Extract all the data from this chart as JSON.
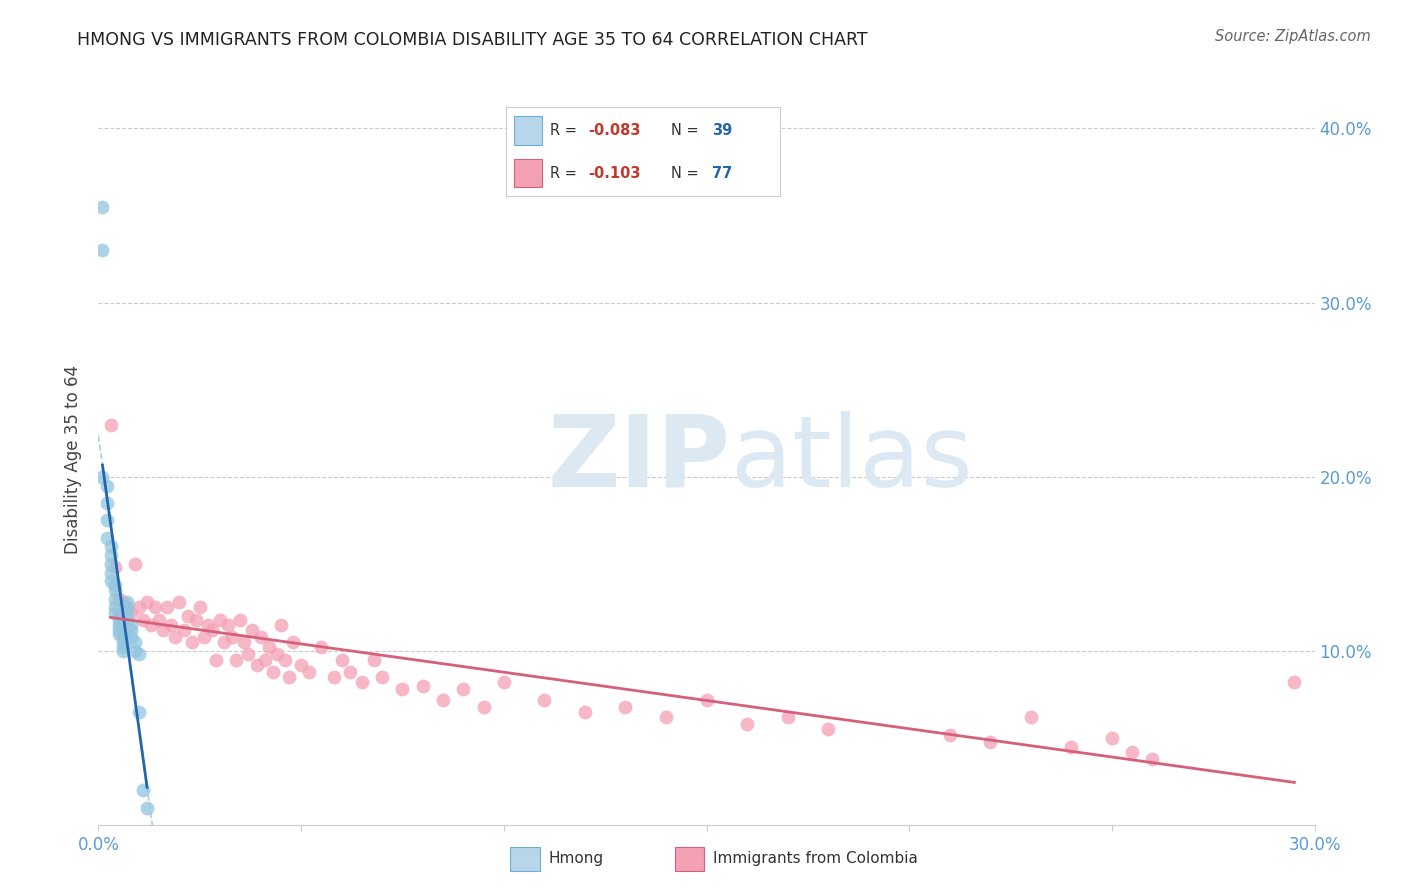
{
  "title": "HMONG VS IMMIGRANTS FROM COLOMBIA DISABILITY AGE 35 TO 64 CORRELATION CHART",
  "source": "Source: ZipAtlas.com",
  "ylabel": "Disability Age 35 to 64",
  "xlim": [
    0.0,
    0.3
  ],
  "ylim": [
    0.0,
    0.42
  ],
  "hmong_color": "#92c5de",
  "colombia_color": "#f4a0b5",
  "hmong_line_color": "#2166ac",
  "colombia_line_color": "#d6607a",
  "hmong_dash_color": "#92c5de",
  "background_color": "#ffffff",
  "grid_color": "#cccccc",
  "hmong_x": [
    0.001,
    0.001,
    0.001,
    0.002,
    0.002,
    0.002,
    0.002,
    0.003,
    0.003,
    0.003,
    0.003,
    0.003,
    0.004,
    0.004,
    0.004,
    0.004,
    0.004,
    0.005,
    0.005,
    0.005,
    0.005,
    0.005,
    0.006,
    0.006,
    0.006,
    0.006,
    0.007,
    0.007,
    0.007,
    0.007,
    0.008,
    0.008,
    0.008,
    0.009,
    0.009,
    0.01,
    0.01,
    0.011,
    0.012
  ],
  "hmong_y": [
    0.355,
    0.33,
    0.2,
    0.195,
    0.185,
    0.175,
    0.165,
    0.16,
    0.155,
    0.15,
    0.145,
    0.14,
    0.138,
    0.135,
    0.13,
    0.125,
    0.122,
    0.12,
    0.118,
    0.115,
    0.112,
    0.11,
    0.108,
    0.105,
    0.102,
    0.1,
    0.128,
    0.125,
    0.122,
    0.118,
    0.115,
    0.112,
    0.108,
    0.105,
    0.1,
    0.098,
    0.065,
    0.02,
    0.01
  ],
  "colombia_x": [
    0.003,
    0.004,
    0.005,
    0.006,
    0.007,
    0.008,
    0.009,
    0.01,
    0.011,
    0.012,
    0.013,
    0.014,
    0.015,
    0.016,
    0.017,
    0.018,
    0.019,
    0.02,
    0.021,
    0.022,
    0.023,
    0.024,
    0.025,
    0.026,
    0.027,
    0.028,
    0.029,
    0.03,
    0.031,
    0.032,
    0.033,
    0.034,
    0.035,
    0.036,
    0.037,
    0.038,
    0.039,
    0.04,
    0.041,
    0.042,
    0.043,
    0.044,
    0.045,
    0.046,
    0.047,
    0.048,
    0.05,
    0.052,
    0.055,
    0.058,
    0.06,
    0.062,
    0.065,
    0.068,
    0.07,
    0.075,
    0.08,
    0.085,
    0.09,
    0.095,
    0.1,
    0.11,
    0.12,
    0.13,
    0.14,
    0.15,
    0.16,
    0.17,
    0.18,
    0.21,
    0.22,
    0.23,
    0.24,
    0.25,
    0.255,
    0.26,
    0.295
  ],
  "colombia_y": [
    0.23,
    0.148,
    0.13,
    0.128,
    0.125,
    0.122,
    0.15,
    0.125,
    0.118,
    0.128,
    0.115,
    0.125,
    0.118,
    0.112,
    0.125,
    0.115,
    0.108,
    0.128,
    0.112,
    0.12,
    0.105,
    0.118,
    0.125,
    0.108,
    0.115,
    0.112,
    0.095,
    0.118,
    0.105,
    0.115,
    0.108,
    0.095,
    0.118,
    0.105,
    0.098,
    0.112,
    0.092,
    0.108,
    0.095,
    0.102,
    0.088,
    0.098,
    0.115,
    0.095,
    0.085,
    0.105,
    0.092,
    0.088,
    0.102,
    0.085,
    0.095,
    0.088,
    0.082,
    0.095,
    0.085,
    0.078,
    0.08,
    0.072,
    0.078,
    0.068,
    0.082,
    0.072,
    0.065,
    0.068,
    0.062,
    0.072,
    0.058,
    0.062,
    0.055,
    0.052,
    0.048,
    0.062,
    0.045,
    0.05,
    0.042,
    0.038,
    0.082
  ]
}
